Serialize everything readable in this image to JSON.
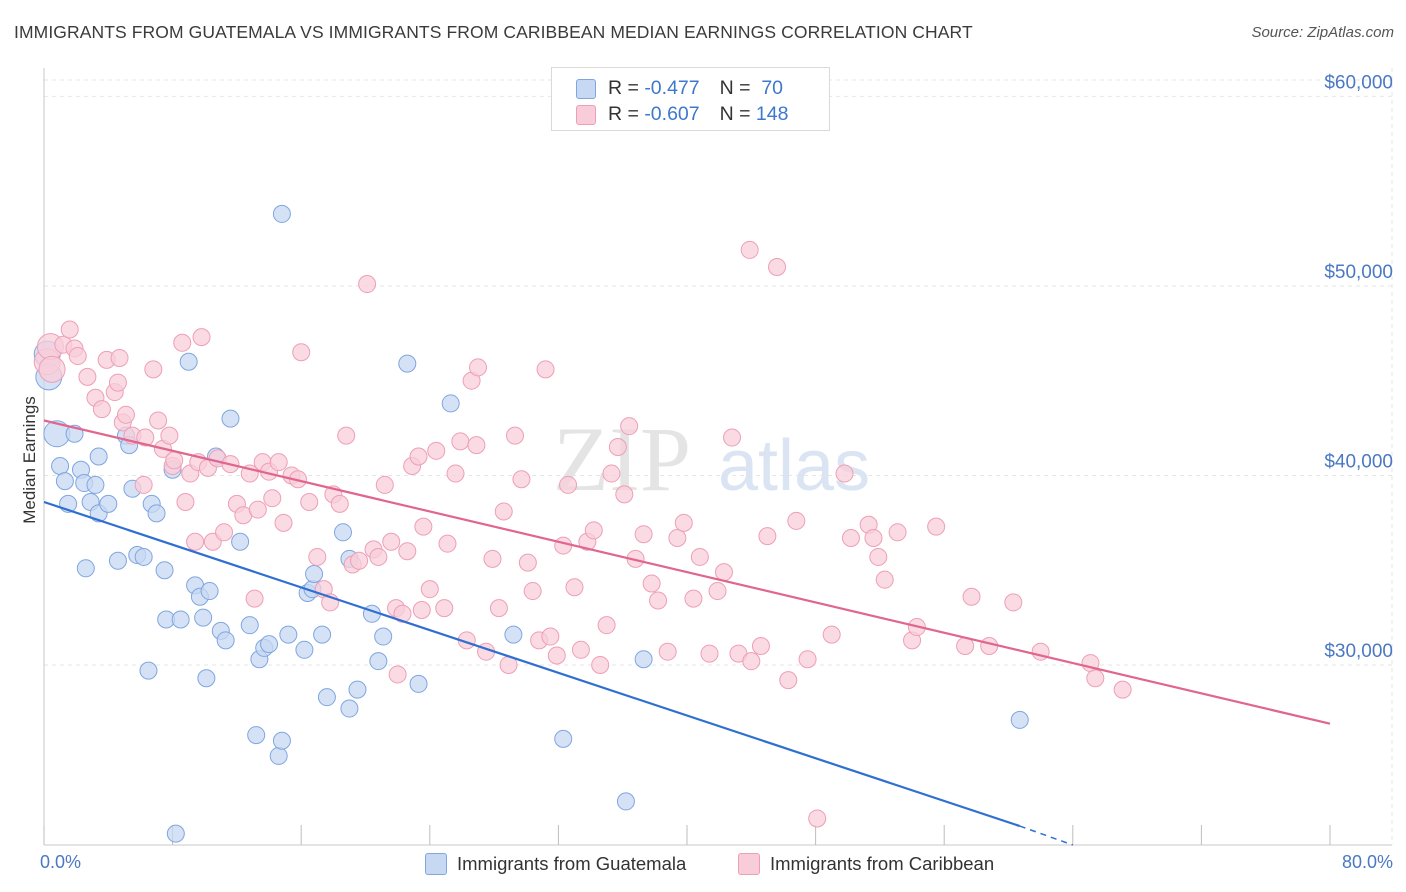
{
  "title": "IMMIGRANTS FROM GUATEMALA VS IMMIGRANTS FROM CARIBBEAN MEDIAN EARNINGS CORRELATION CHART",
  "source": "Source: ZipAtlas.com",
  "watermark": {
    "zip": "ZIP",
    "atlas": "atlas"
  },
  "colors": {
    "guatemala_fill": "#c7d8f3",
    "guatemala_stroke": "#7fa6e0",
    "guatemala_line": "#2f6fd1",
    "caribbean_fill": "#f8cdd9",
    "caribbean_stroke": "#ee9fb6",
    "caribbean_line": "#e0668f",
    "tick_text": "#4a78c2",
    "grid": "#e6e6e6"
  },
  "legend": {
    "rows": [
      {
        "r_label": "R = ",
        "r_value": "-0.477",
        "n_label": "N = ",
        "n_value": " 70",
        "series": "guatemala"
      },
      {
        "r_label": "R = ",
        "r_value": "-0.607",
        "n_label": "N = ",
        "n_value": "148",
        "series": "caribbean"
      }
    ]
  },
  "bottom_legend": [
    "Immigrants from Guatemala",
    "Immigrants from Caribbean"
  ],
  "chart_data": {
    "type": "scatter",
    "title": "IMMIGRANTS FROM GUATEMALA VS IMMIGRANTS FROM CARIBBEAN MEDIAN EARNINGS CORRELATION CHART",
    "xlabel": "",
    "ylabel": "Median Earnings",
    "x_tick_labels": [
      "0.0%",
      "80.0%"
    ],
    "y_ticks": [
      30000,
      40000,
      50000,
      60000
    ],
    "y_tick_labels": [
      "$30,000",
      "$40,000",
      "$50,000",
      "$60,000"
    ],
    "xlim": [
      0,
      80
    ],
    "ylim": [
      20500,
      61500
    ],
    "grid": true,
    "legend_position": "top-center",
    "series": [
      {
        "name": "Immigrants from Guatemala",
        "R": -0.477,
        "N": 70,
        "trend": {
          "x0": 0,
          "y0": 38600,
          "x1": 60.7,
          "y1": 21500,
          "dashed_to_x": 64,
          "dashed_to_y": 20500
        },
        "points": [
          [
            0.2,
            46400
          ],
          [
            0.3,
            45200
          ],
          [
            0.8,
            42200
          ],
          [
            1.0,
            40500
          ],
          [
            1.3,
            39700
          ],
          [
            1.5,
            38500
          ],
          [
            1.9,
            42200
          ],
          [
            2.3,
            40300
          ],
          [
            2.5,
            39600
          ],
          [
            2.6,
            35100
          ],
          [
            2.9,
            38600
          ],
          [
            3.2,
            39500
          ],
          [
            3.4,
            38000
          ],
          [
            3.4,
            41000
          ],
          [
            4.0,
            38500
          ],
          [
            4.6,
            35500
          ],
          [
            5.1,
            42100
          ],
          [
            5.3,
            41600
          ],
          [
            5.5,
            39300
          ],
          [
            5.8,
            35800
          ],
          [
            6.2,
            35700
          ],
          [
            6.5,
            29700
          ],
          [
            6.7,
            38500
          ],
          [
            7.0,
            38000
          ],
          [
            7.5,
            35000
          ],
          [
            7.6,
            32400
          ],
          [
            8.0,
            40300
          ],
          [
            8.5,
            32400
          ],
          [
            9.0,
            46000
          ],
          [
            9.4,
            34200
          ],
          [
            9.7,
            33600
          ],
          [
            9.9,
            32500
          ],
          [
            10.1,
            29300
          ],
          [
            10.3,
            33900
          ],
          [
            10.7,
            41000
          ],
          [
            11.0,
            31800
          ],
          [
            11.3,
            31300
          ],
          [
            11.6,
            43000
          ],
          [
            12.2,
            36500
          ],
          [
            12.8,
            32100
          ],
          [
            13.2,
            26300
          ],
          [
            13.4,
            30300
          ],
          [
            13.7,
            30900
          ],
          [
            14.0,
            31100
          ],
          [
            14.6,
            25200
          ],
          [
            14.8,
            26000
          ],
          [
            14.8,
            53800
          ],
          [
            15.2,
            31600
          ],
          [
            16.2,
            30800
          ],
          [
            16.4,
            33800
          ],
          [
            16.7,
            34000
          ],
          [
            16.8,
            34800
          ],
          [
            17.3,
            31600
          ],
          [
            17.6,
            28300
          ],
          [
            18.6,
            37000
          ],
          [
            19.0,
            35600
          ],
          [
            19.0,
            27700
          ],
          [
            19.5,
            28700
          ],
          [
            20.4,
            32700
          ],
          [
            20.8,
            30200
          ],
          [
            21.1,
            31500
          ],
          [
            22.6,
            45900
          ],
          [
            23.3,
            29000
          ],
          [
            25.3,
            43800
          ],
          [
            29.2,
            31600
          ],
          [
            32.3,
            26100
          ],
          [
            36.2,
            22800
          ],
          [
            37.3,
            30300
          ],
          [
            60.7,
            27100
          ],
          [
            8.2,
            21100
          ]
        ]
      },
      {
        "name": "Immigrants from Caribbean",
        "R": -0.607,
        "N": 148,
        "trend": {
          "x0": 0,
          "y0": 42900,
          "x1": 80,
          "y1": 26900
        },
        "points": [
          [
            0.2,
            46000
          ],
          [
            0.4,
            46800
          ],
          [
            0.5,
            45600
          ],
          [
            1.2,
            46900
          ],
          [
            1.6,
            47700
          ],
          [
            1.9,
            46700
          ],
          [
            2.1,
            46300
          ],
          [
            2.7,
            45200
          ],
          [
            3.2,
            44100
          ],
          [
            3.6,
            43500
          ],
          [
            3.9,
            46100
          ],
          [
            4.4,
            44400
          ],
          [
            4.6,
            44900
          ],
          [
            4.7,
            46200
          ],
          [
            4.9,
            42800
          ],
          [
            5.1,
            43200
          ],
          [
            5.5,
            42100
          ],
          [
            6.2,
            39500
          ],
          [
            6.3,
            42000
          ],
          [
            6.8,
            45600
          ],
          [
            7.1,
            42900
          ],
          [
            7.4,
            41400
          ],
          [
            7.8,
            42100
          ],
          [
            8.0,
            40500
          ],
          [
            8.1,
            40800
          ],
          [
            8.6,
            47000
          ],
          [
            9.1,
            40100
          ],
          [
            9.4,
            36500
          ],
          [
            9.6,
            40700
          ],
          [
            9.8,
            47300
          ],
          [
            10.2,
            40400
          ],
          [
            10.5,
            36500
          ],
          [
            10.8,
            40900
          ],
          [
            11.2,
            37000
          ],
          [
            11.6,
            40600
          ],
          [
            12.0,
            38500
          ],
          [
            12.4,
            37900
          ],
          [
            12.8,
            40100
          ],
          [
            13.3,
            38200
          ],
          [
            13.6,
            40700
          ],
          [
            14.0,
            40200
          ],
          [
            14.2,
            38800
          ],
          [
            14.6,
            40700
          ],
          [
            14.9,
            37500
          ],
          [
            15.4,
            40000
          ],
          [
            15.8,
            39800
          ],
          [
            16.0,
            46500
          ],
          [
            16.5,
            38600
          ],
          [
            17.0,
            35700
          ],
          [
            17.4,
            34000
          ],
          [
            17.8,
            33300
          ],
          [
            18.0,
            39000
          ],
          [
            18.4,
            38500
          ],
          [
            18.8,
            42100
          ],
          [
            19.2,
            35300
          ],
          [
            19.6,
            35500
          ],
          [
            20.1,
            50100
          ],
          [
            20.5,
            36100
          ],
          [
            20.8,
            35700
          ],
          [
            21.2,
            39500
          ],
          [
            21.6,
            36500
          ],
          [
            21.9,
            33000
          ],
          [
            22.3,
            32700
          ],
          [
            22.6,
            36000
          ],
          [
            22.9,
            40500
          ],
          [
            23.3,
            41000
          ],
          [
            23.6,
            37300
          ],
          [
            24.0,
            34000
          ],
          [
            24.4,
            41300
          ],
          [
            24.9,
            33000
          ],
          [
            25.1,
            36400
          ],
          [
            25.6,
            40100
          ],
          [
            25.9,
            41800
          ],
          [
            26.3,
            31300
          ],
          [
            26.6,
            45000
          ],
          [
            26.9,
            41600
          ],
          [
            27.5,
            30700
          ],
          [
            27.9,
            35600
          ],
          [
            28.3,
            33000
          ],
          [
            28.6,
            38100
          ],
          [
            28.9,
            30000
          ],
          [
            29.3,
            42100
          ],
          [
            29.7,
            39800
          ],
          [
            30.1,
            35400
          ],
          [
            30.4,
            33900
          ],
          [
            30.8,
            31300
          ],
          [
            31.2,
            45600
          ],
          [
            31.5,
            31500
          ],
          [
            31.9,
            30500
          ],
          [
            32.3,
            36300
          ],
          [
            32.6,
            39500
          ],
          [
            33.0,
            34100
          ],
          [
            33.4,
            30800
          ],
          [
            33.8,
            36500
          ],
          [
            34.2,
            37100
          ],
          [
            34.6,
            30000
          ],
          [
            35.0,
            32100
          ],
          [
            35.3,
            40100
          ],
          [
            35.7,
            41500
          ],
          [
            36.1,
            39000
          ],
          [
            36.4,
            42600
          ],
          [
            36.8,
            35600
          ],
          [
            37.3,
            36900
          ],
          [
            37.8,
            34300
          ],
          [
            38.2,
            33400
          ],
          [
            38.8,
            30700
          ],
          [
            39.4,
            36700
          ],
          [
            39.8,
            37500
          ],
          [
            40.4,
            33500
          ],
          [
            40.8,
            35700
          ],
          [
            41.4,
            30600
          ],
          [
            41.9,
            33900
          ],
          [
            42.3,
            34900
          ],
          [
            42.8,
            42000
          ],
          [
            43.2,
            30600
          ],
          [
            43.9,
            51900
          ],
          [
            44.6,
            31000
          ],
          [
            45.0,
            36800
          ],
          [
            45.6,
            51000
          ],
          [
            46.3,
            29200
          ],
          [
            46.8,
            37600
          ],
          [
            47.5,
            30300
          ],
          [
            48.1,
            21900
          ],
          [
            49.0,
            31600
          ],
          [
            49.8,
            40100
          ],
          [
            50.2,
            36700
          ],
          [
            51.3,
            37400
          ],
          [
            51.6,
            36700
          ],
          [
            51.9,
            35700
          ],
          [
            52.3,
            34500
          ],
          [
            53.1,
            37000
          ],
          [
            54.0,
            31300
          ],
          [
            54.3,
            32000
          ],
          [
            55.5,
            37300
          ],
          [
            57.3,
            31000
          ],
          [
            57.7,
            33600
          ],
          [
            58.8,
            31000
          ],
          [
            60.3,
            33300
          ],
          [
            62.0,
            30700
          ],
          [
            65.1,
            30100
          ],
          [
            65.4,
            29300
          ],
          [
            67.1,
            28700
          ],
          [
            13.1,
            33500
          ],
          [
            27.0,
            45700
          ],
          [
            8.8,
            38600
          ],
          [
            22.0,
            29500
          ],
          [
            44.0,
            30200
          ],
          [
            23.5,
            32900
          ]
        ]
      }
    ]
  }
}
